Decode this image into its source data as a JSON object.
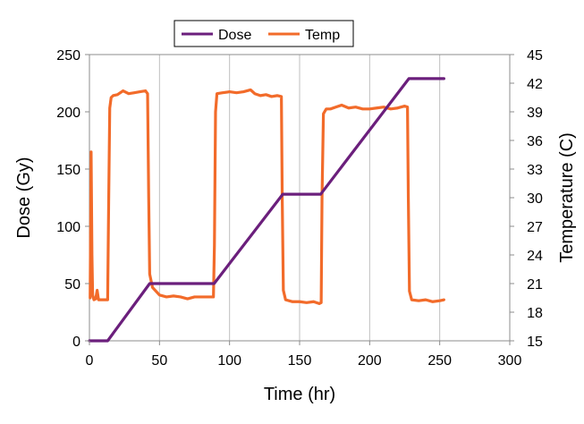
{
  "chart_data": {
    "type": "line",
    "xlabel": "Time (hr)",
    "ylabel": "Dose (Gy)",
    "y2label": "Temperature  (C)",
    "xlim": [
      0,
      300
    ],
    "ylim": [
      0,
      250
    ],
    "y2lim": [
      15,
      45
    ],
    "xticks": [
      0,
      50,
      100,
      150,
      200,
      250,
      300
    ],
    "yticks": [
      0,
      50,
      100,
      150,
      200,
      250
    ],
    "y2ticks": [
      15,
      18,
      21,
      24,
      27,
      30,
      33,
      36,
      39,
      42,
      45
    ],
    "grid": "vertical",
    "legend_position": "top",
    "series": [
      {
        "name": "Dose",
        "axis": "left",
        "color": "#6b1f7c",
        "points": [
          [
            0,
            0
          ],
          [
            13,
            0
          ],
          [
            43,
            50
          ],
          [
            89,
            50
          ],
          [
            138,
            128
          ],
          [
            165,
            128
          ],
          [
            228,
            229
          ],
          [
            253,
            229
          ]
        ]
      },
      {
        "name": "Temp",
        "axis": "right",
        "color": "#f26b2a",
        "points": [
          [
            0.5,
            19.5
          ],
          [
            1.2,
            34.8
          ],
          [
            1.8,
            24
          ],
          [
            2.3,
            19.8
          ],
          [
            3.2,
            19.3
          ],
          [
            4.5,
            19.4
          ],
          [
            5.5,
            20.3
          ],
          [
            6.5,
            19.3
          ],
          [
            9,
            19.3
          ],
          [
            13,
            19.3
          ],
          [
            13.7,
            29
          ],
          [
            14.5,
            39.4
          ],
          [
            15.5,
            40.5
          ],
          [
            17,
            40.7
          ],
          [
            20,
            40.8
          ],
          [
            24,
            41.2
          ],
          [
            28,
            40.9
          ],
          [
            32,
            41
          ],
          [
            36,
            41.1
          ],
          [
            40,
            41.2
          ],
          [
            41.5,
            40.9
          ],
          [
            42.3,
            30
          ],
          [
            43,
            22
          ],
          [
            45,
            20.6
          ],
          [
            50,
            19.8
          ],
          [
            55,
            19.6
          ],
          [
            60,
            19.7
          ],
          [
            65,
            19.6
          ],
          [
            70,
            19.4
          ],
          [
            75,
            19.6
          ],
          [
            80,
            19.6
          ],
          [
            85,
            19.6
          ],
          [
            88.5,
            19.6
          ],
          [
            89.2,
            25
          ],
          [
            90,
            39
          ],
          [
            91,
            40.9
          ],
          [
            95,
            41
          ],
          [
            100,
            41.1
          ],
          [
            105,
            41
          ],
          [
            110,
            41.1
          ],
          [
            115,
            41.3
          ],
          [
            118,
            40.9
          ],
          [
            122,
            40.7
          ],
          [
            126,
            40.8
          ],
          [
            130,
            40.6
          ],
          [
            134,
            40.7
          ],
          [
            137,
            40.6
          ],
          [
            137.6,
            30
          ],
          [
            138.4,
            20.3
          ],
          [
            140,
            19.3
          ],
          [
            145,
            19.1
          ],
          [
            150,
            19.1
          ],
          [
            155,
            19
          ],
          [
            160,
            19.1
          ],
          [
            164,
            18.9
          ],
          [
            165.4,
            19
          ],
          [
            166,
            30
          ],
          [
            167,
            38.8
          ],
          [
            169,
            39.3
          ],
          [
            172,
            39.3
          ],
          [
            176,
            39.5
          ],
          [
            180,
            39.7
          ],
          [
            185,
            39.4
          ],
          [
            190,
            39.5
          ],
          [
            195,
            39.3
          ],
          [
            200,
            39.3
          ],
          [
            205,
            39.4
          ],
          [
            210,
            39.5
          ],
          [
            215,
            39.3
          ],
          [
            220,
            39.4
          ],
          [
            225,
            39.6
          ],
          [
            227,
            39.5
          ],
          [
            227.6,
            30
          ],
          [
            228.4,
            20.2
          ],
          [
            230,
            19.3
          ],
          [
            235,
            19.2
          ],
          [
            240,
            19.3
          ],
          [
            245,
            19.1
          ],
          [
            250,
            19.2
          ],
          [
            253,
            19.3
          ]
        ]
      }
    ]
  }
}
